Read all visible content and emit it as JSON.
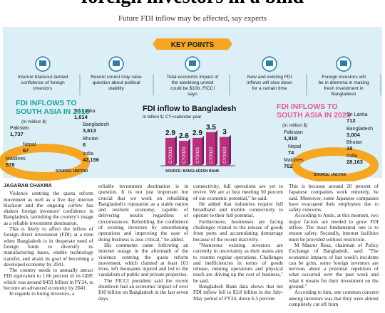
{
  "headline": "foreign investors in a bind",
  "subtitle": "Future FDI inflow may be affected, say experts",
  "infographic": {
    "banner": "KEY POINTS",
    "key_points": [
      "Internet blackout dented confidence of foreign investors",
      "Recent unrest may raise question about political stability",
      "Total economic impact of the weeklong unrest could be $10b, FICCI says",
      "New and existing FDI inflows will slow down for a certain time",
      "Foreign investors will be in dilemma in making fresh investment in Bangladesh"
    ],
    "left": {
      "title": [
        "FDI INFLOWS TO",
        "SOUTH ASIA IN 2018"
      ],
      "unit": "(In million $)",
      "items": [
        [
          "Pakistan",
          "1,737"
        ],
        [
          "Nepal",
          "67"
        ],
        [
          "Maldives",
          "576"
        ],
        [
          "Sri Lanka",
          "1,614"
        ],
        [
          "Bangladesh",
          "3,613"
        ],
        [
          "Bhutan",
          "6"
        ],
        [
          "India",
          "42,156"
        ]
      ],
      "source": "SOURCE: UNCTAD"
    },
    "right": {
      "title": [
        "FDI INFLOWS TO",
        "SOUTH ASIA IN 2023"
      ],
      "unit": "(In million $)",
      "items": [
        [
          "Pakistan",
          "1,818"
        ],
        [
          "Nepal",
          "74"
        ],
        [
          "Maldives",
          "762"
        ],
        [
          "Sri Lanka",
          "712"
        ],
        [
          "Bangladesh",
          "3,004"
        ],
        [
          "Bhutan",
          "18"
        ],
        [
          "India",
          "28,163"
        ]
      ],
      "source": "SOURCE: UNCTAD"
    },
    "bar_chart": {
      "title": "FDI inflow to Bangladesh",
      "subtitle": "In billion $; CY=calendar year",
      "categories": [
        "CY2019",
        "CY2020",
        "CY2021",
        "CY2022",
        "CY2023"
      ],
      "values": [
        2.9,
        2.6,
        2.9,
        3.5,
        3
      ],
      "source": "SOURCE: BANGLADESH BANK"
    }
  },
  "article": {
    "byline": "JAGARAN CHAKMA",
    "columns": [
      [
        "Violence centring the quota reform movement as well as a five day internet blackout and the ongoing curfew has shaken foreign investors' confidence in Bangladesh, tarnishing the country's image as a reliable investment destination.",
        "This is likely to affect the inflow of foreign direct investment (FDI) at a time when Bangladesh is in desperate need of foreign funds to diversify its manufacturing bases, enable technology transfer, and attain its goal of becoming a developed economy by 2041.",
        "The country needs to annually attract FDI equivalent to 1.66 percent of its GDP, which was around $459 billion in FY24, to become an advanced economy by 2041.",
        "In regards to luring investors, a"
      ],
      [
        "reliable investment destination is in question. It is not just important but crucial that we work on rebuilding Bangladesh's reputation as a stable nation and resilient economy, capable of delivering results regardless of circumstances. Rebuilding the confidence of existing investors by smoothening operations and improving the ease of doing business is also critical,\" he added.",
        "His comments came following an internet outage in the aftermath of the violence centring the quota reform movement, which claimed at least 161 lives, left thousands injured and led to the vandalism of public and private properties.",
        "The FICCI president said the recent shutdown had an economic impact of over $10 billion on Bangladesh in the last seven days."
      ],
      [
        "connectivity, full operations are yet to revive. We are at best meeting 50 percent of our economic potential,\" he said.",
        "He added that industries require full broadband and mobile connectivity to operate to their full potential.",
        "Furthermore, businesses are facing challenges related to the release of goods from ports and accumulating demurrage because of the recent inactivity.",
        "\"Numerous existing investors are currently in uncertainty as their teams aim to resume regular operations. Challenges and inefficiencies in terms of goods release, running operations and physical reach are driving up the cost of business,\" he said.",
        "Bangladesh Bank data shows that net FDI inflow fell to $3.8 billion in the July-May period of FY24, down 6.5 percent"
      ],
      [
        "This is because around 20 percent of Japanese companies work remotely, he said. Moreover, some Japanese companies have evacuated their employees due to safety concerns.",
        "According to Ando, at this moment, two major factors are needed to grow FDI inflow. The most fundamental one is to ensure safety. Secondly, internet facilities must be provided without restriction.",
        "M Masrur Reaz, chairman of Policy Exchange of Bangladesh, said: \"The economic impacts of last week's incidents can be grim, some foreign investors are nervous about a potential repetition of what occurred over the past week and what it means for their investment on the ground.\"",
        "According to him, one common concern among investors was that they were almost completely cut off from"
      ]
    ]
  }
}
